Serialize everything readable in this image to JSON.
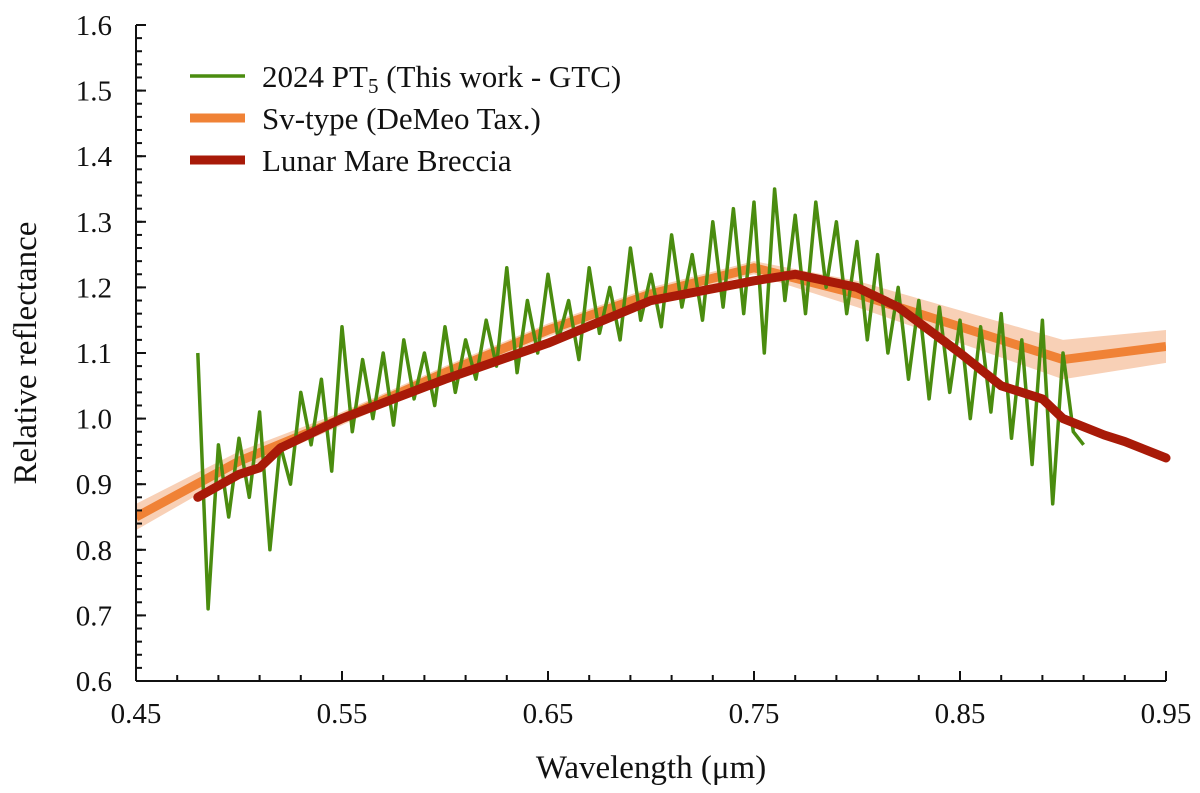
{
  "chart_data": {
    "type": "line",
    "xlabel": "Wavelength (μm)",
    "ylabel": "Relative reflectance",
    "xlim": [
      0.45,
      0.95
    ],
    "ylim": [
      0.6,
      1.6
    ],
    "xticks": [
      "0.45",
      "0.55",
      "0.65",
      "0.75",
      "0.85",
      "0.95"
    ],
    "xtick_values": [
      0.45,
      0.55,
      0.65,
      0.75,
      0.85,
      0.95
    ],
    "yticks": [
      "0.6",
      "0.7",
      "0.8",
      "0.9",
      "1.0",
      "1.1",
      "1.2",
      "1.3",
      "1.4",
      "1.5",
      "1.6"
    ],
    "ytick_values": [
      0.6,
      0.7,
      0.8,
      0.9,
      1.0,
      1.1,
      1.2,
      1.3,
      1.4,
      1.5,
      1.6
    ],
    "legend_position": "top-left",
    "series": [
      {
        "name": "2024 PT",
        "name_sub": "5",
        "name_suffix": " (This work - GTC)",
        "color": "#4a8c0f",
        "x_start": 0.48,
        "x_step": 0.005,
        "values": [
          1.1,
          0.71,
          0.96,
          0.85,
          0.97,
          0.88,
          1.01,
          0.8,
          0.96,
          0.9,
          1.04,
          0.96,
          1.06,
          0.92,
          1.14,
          0.98,
          1.09,
          1.0,
          1.1,
          0.99,
          1.12,
          1.03,
          1.1,
          1.02,
          1.14,
          1.04,
          1.12,
          1.06,
          1.15,
          1.08,
          1.23,
          1.07,
          1.18,
          1.1,
          1.22,
          1.12,
          1.18,
          1.09,
          1.23,
          1.13,
          1.2,
          1.12,
          1.26,
          1.15,
          1.22,
          1.14,
          1.28,
          1.17,
          1.25,
          1.15,
          1.3,
          1.17,
          1.32,
          1.16,
          1.33,
          1.1,
          1.35,
          1.18,
          1.31,
          1.16,
          1.33,
          1.2,
          1.3,
          1.16,
          1.27,
          1.12,
          1.25,
          1.1,
          1.2,
          1.06,
          1.18,
          1.03,
          1.17,
          1.04,
          1.15,
          1.0,
          1.14,
          1.01,
          1.16,
          0.97,
          1.12,
          0.93,
          1.15,
          0.87,
          1.1,
          0.98,
          0.96
        ]
      },
      {
        "name": "Sv-type (DeMeo Tax.)",
        "color": "#f08236",
        "band_color": "#f6c4a4",
        "x": [
          0.45,
          0.5,
          0.55,
          0.6,
          0.65,
          0.7,
          0.75,
          0.8,
          0.85,
          0.9,
          0.95
        ],
        "values": [
          0.85,
          0.935,
          1.0,
          1.07,
          1.135,
          1.19,
          1.23,
          1.19,
          1.14,
          1.09,
          1.11
        ],
        "std": [
          0.02,
          0.015,
          0.01,
          0.01,
          0.01,
          0.01,
          0.01,
          0.02,
          0.025,
          0.03,
          0.025
        ]
      },
      {
        "name": "Lunar Mare Breccia",
        "color": "#a81a08",
        "x": [
          0.48,
          0.5,
          0.51,
          0.52,
          0.55,
          0.6,
          0.65,
          0.7,
          0.75,
          0.77,
          0.8,
          0.82,
          0.85,
          0.87,
          0.89,
          0.9,
          0.92,
          0.93,
          0.95
        ],
        "values": [
          0.88,
          0.915,
          0.925,
          0.955,
          1.0,
          1.06,
          1.115,
          1.18,
          1.21,
          1.22,
          1.2,
          1.17,
          1.1,
          1.05,
          1.03,
          1.0,
          0.975,
          0.965,
          0.94
        ]
      }
    ]
  }
}
